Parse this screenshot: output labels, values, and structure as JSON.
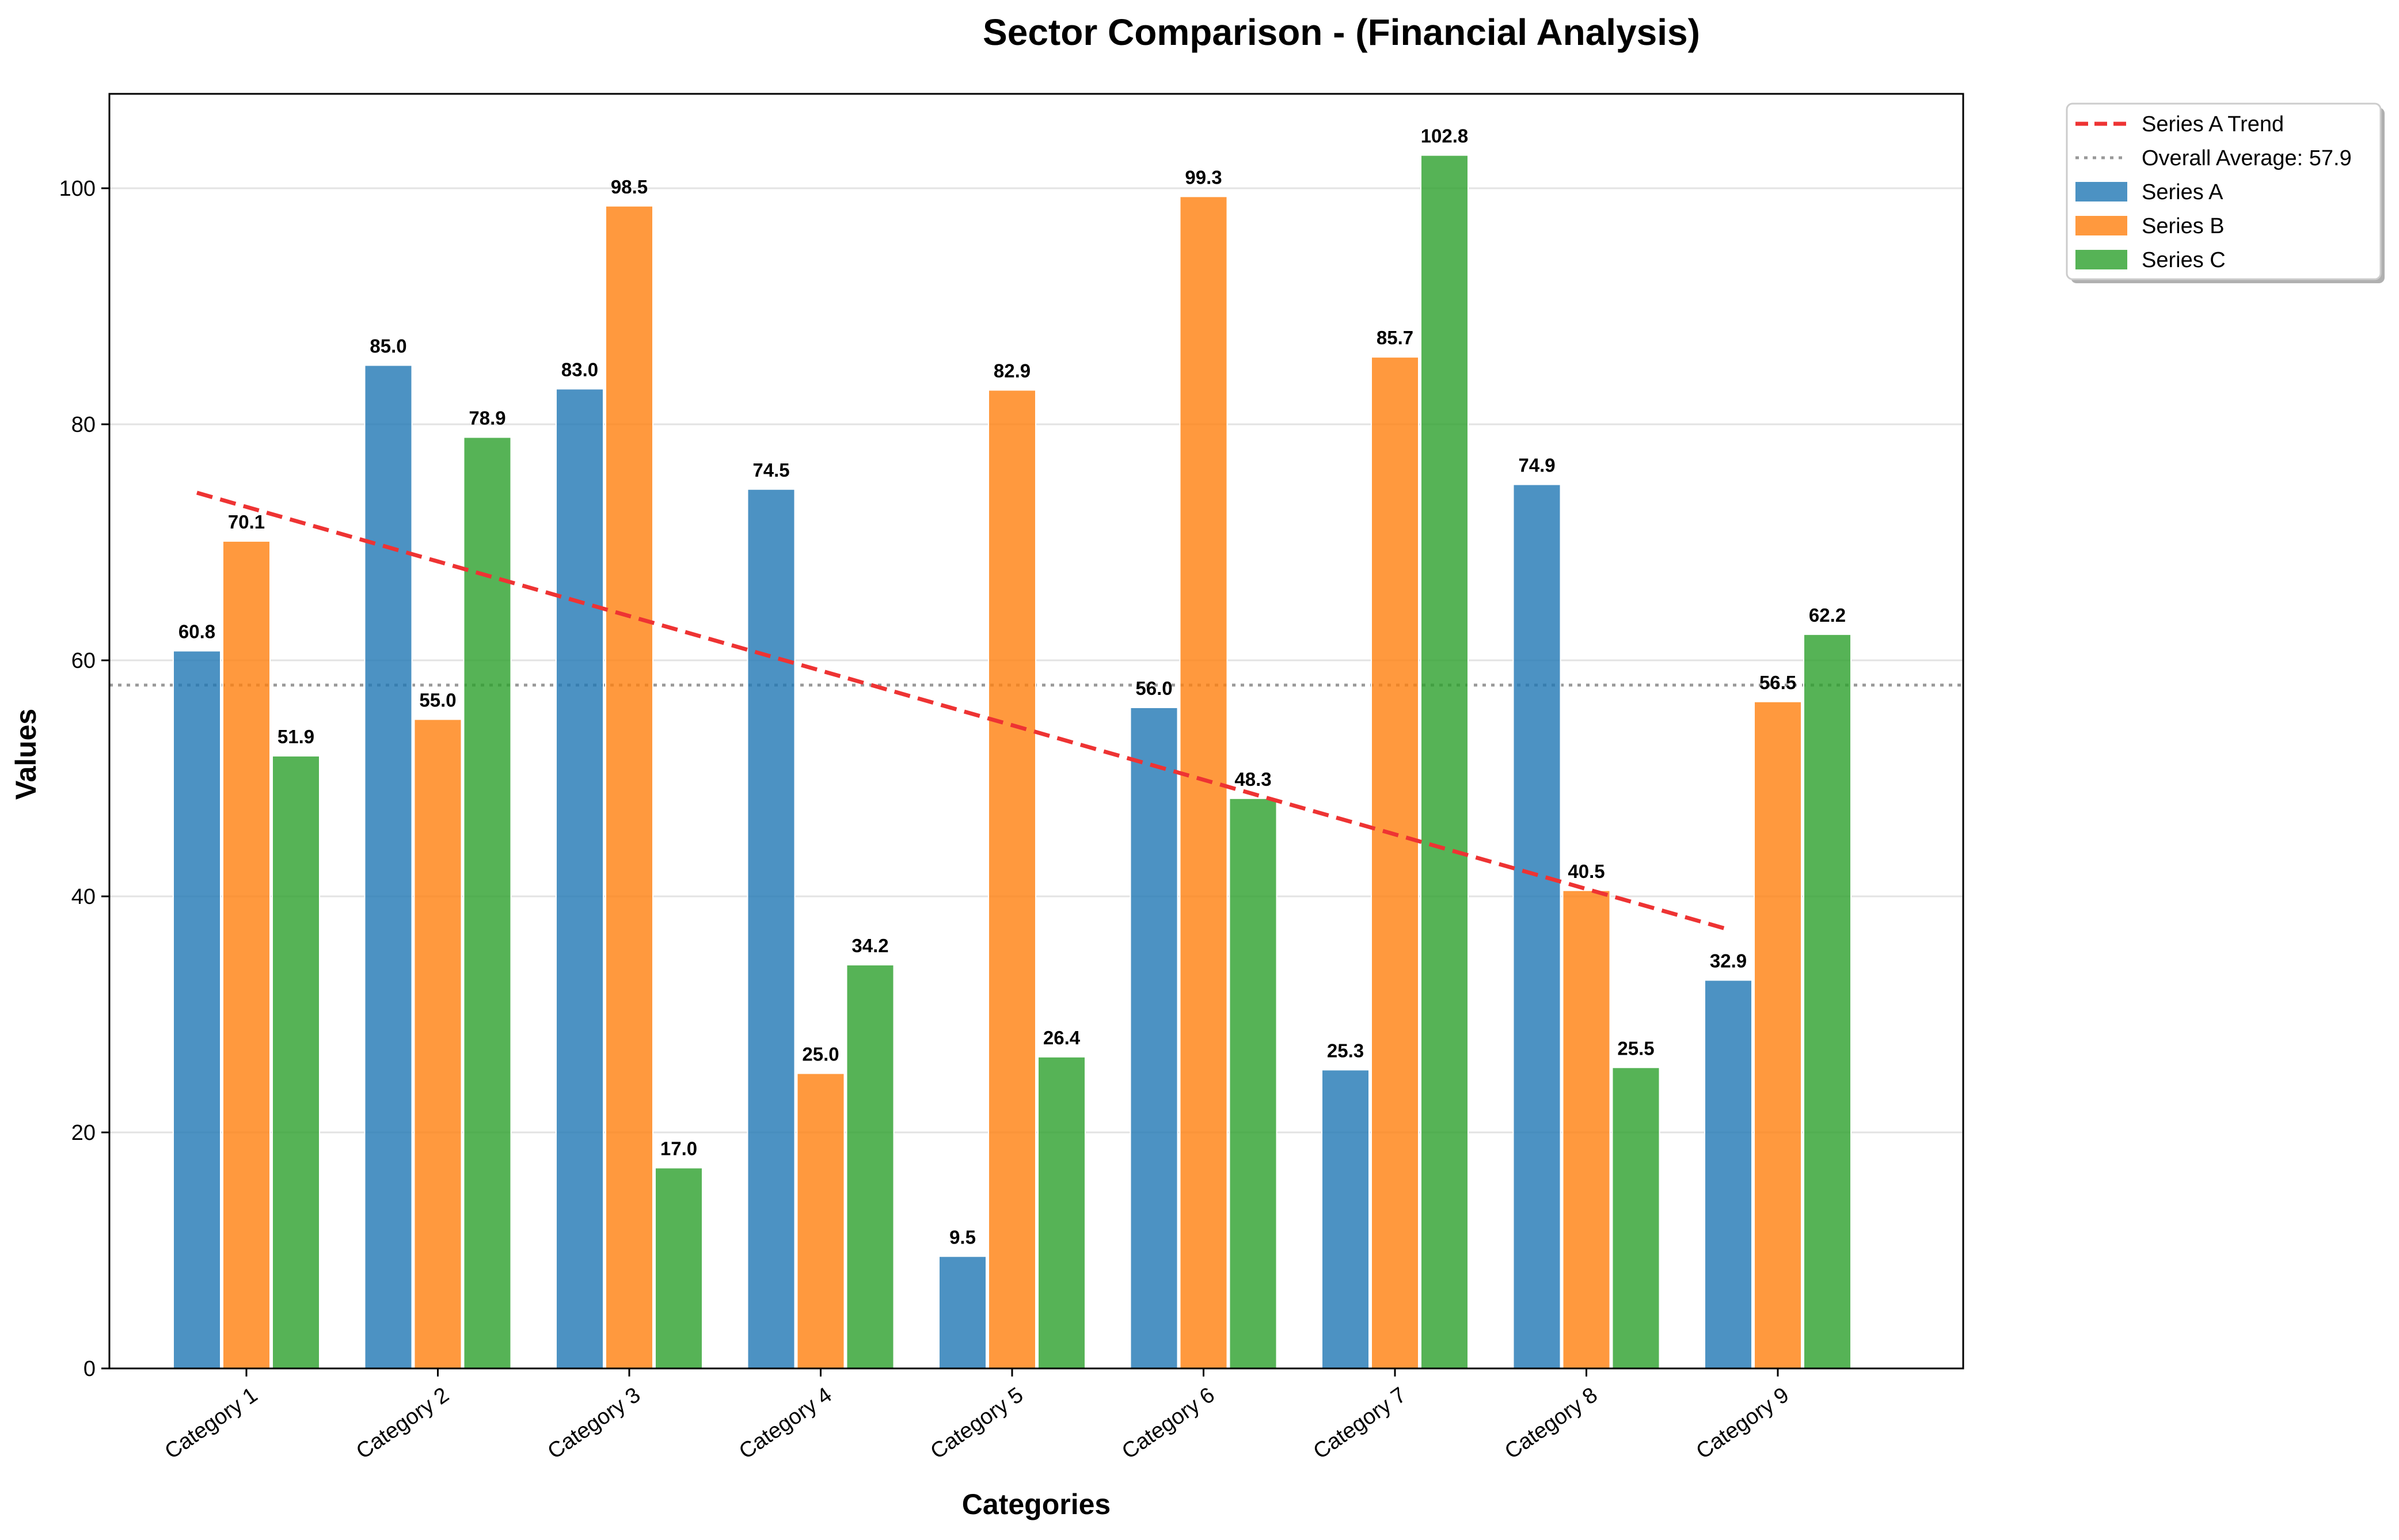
{
  "chart_data": {
    "type": "bar",
    "title": "Sector Comparison - (Financial Analysis)",
    "xlabel": "Categories",
    "ylabel": "Values",
    "ylim": [
      0,
      108
    ],
    "yticks": [
      0,
      20,
      40,
      60,
      80,
      100
    ],
    "grid": "horizontal",
    "legend_position": "top-right",
    "categories": [
      "Category 1",
      "Category 2",
      "Category 3",
      "Category 4",
      "Category 5",
      "Category 6",
      "Category 7",
      "Category 8",
      "Category 9"
    ],
    "series": [
      {
        "name": "Series A",
        "color": "#1f77b4",
        "values": [
          60.8,
          85.0,
          83.0,
          74.5,
          9.5,
          56.0,
          25.3,
          74.9,
          32.9
        ]
      },
      {
        "name": "Series B",
        "color": "#ff7f0e",
        "values": [
          70.1,
          55.0,
          98.5,
          25.0,
          82.9,
          99.3,
          85.7,
          40.5,
          56.5
        ]
      },
      {
        "name": "Series C",
        "color": "#2ca02c",
        "values": [
          51.9,
          78.9,
          17.0,
          34.2,
          26.4,
          48.3,
          102.8,
          25.5,
          62.2
        ]
      }
    ],
    "trend": {
      "name": "Series A Trend",
      "color": "#ee3333",
      "start": 74.2,
      "end": 37.2
    },
    "average": {
      "name": "Overall Average: 57.9",
      "value": 57.9,
      "color": "#999999"
    }
  }
}
